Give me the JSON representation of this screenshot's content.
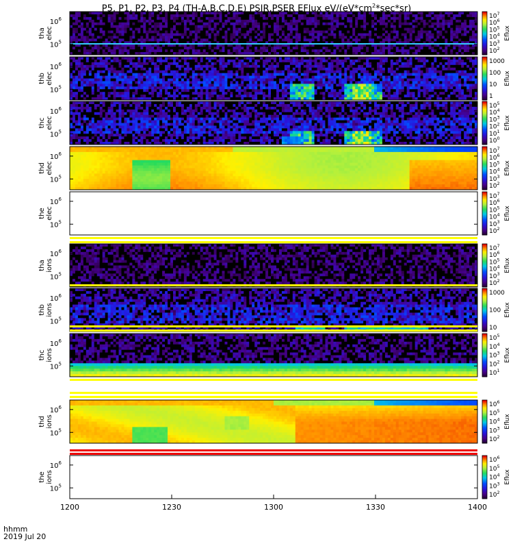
{
  "title_text": "P5, P1, P2, P3, P4 (TH-A,B,C,D,E) PSIR,PSER EFlux eV/(eV*cm",
  "title_sup": "2",
  "title_rest": "*sec*sr)",
  "x_axis": {
    "ticks": [
      "1200",
      "1230",
      "1300",
      "1330",
      "1400"
    ],
    "label_line1": "hhmm",
    "label_line2": "2019 Jul 20"
  },
  "colorbar_label": "Eflux",
  "chart_data": {
    "type": "heatmap",
    "x_range_minutes": [
      0,
      120
    ],
    "panels": [
      {
        "probe": "tha",
        "species": "elec",
        "ylabels": [
          "10",
          "10"
        ],
        "yexp": [
          "6",
          "5"
        ],
        "cbar_ticks": [
          "10^7",
          "10^6",
          "10^5",
          "10^4",
          "10^3",
          "10^2"
        ],
        "pattern": "noise",
        "line": "cyan"
      },
      {
        "probe": "thb",
        "species": "elec",
        "ylabels": [
          "10",
          "10"
        ],
        "yexp": [
          "6",
          "5"
        ],
        "cbar_ticks": [
          "1000",
          "100",
          "10",
          "1"
        ],
        "pattern": "bursts_low"
      },
      {
        "probe": "thc",
        "species": "elec",
        "ylabels": [
          "10",
          "10"
        ],
        "yexp": [
          "6",
          "5"
        ],
        "cbar_ticks": [
          "10^5",
          "10^4",
          "10^3",
          "10^2",
          "10^1",
          "10^0"
        ],
        "pattern": "bursts_low2"
      },
      {
        "probe": "thd",
        "species": "elec",
        "ylabels": [
          "10",
          "10"
        ],
        "yexp": [
          "6",
          "5"
        ],
        "cbar_ticks": [
          "10^7",
          "10^6",
          "10^5",
          "10^4",
          "10^3",
          "10^2"
        ],
        "pattern": "dense_elec"
      },
      {
        "probe": "the",
        "species": "elec",
        "ylabels": [
          "10",
          "10"
        ],
        "yexp": [
          "6",
          "5"
        ],
        "cbar_ticks": [
          "10^7",
          "10^6",
          "10^5",
          "10^4",
          "10^3",
          "10^2"
        ],
        "pattern": "empty"
      },
      {
        "probe": "tha",
        "species": "ions",
        "ylabels": [
          "10",
          "10"
        ],
        "yexp": [
          "6",
          "5"
        ],
        "cbar_ticks": [
          "10^7",
          "10^6",
          "10^5",
          "10^4",
          "10^3",
          "10^2"
        ],
        "pattern": "noise"
      },
      {
        "probe": "thb",
        "species": "ions",
        "ylabels": [
          "10",
          "10"
        ],
        "yexp": [
          "6",
          "5"
        ],
        "cbar_ticks": [
          "1000",
          "100",
          "10"
        ],
        "pattern": "bursts_ions"
      },
      {
        "probe": "thc",
        "species": "ions",
        "ylabels": [
          "10",
          "10"
        ],
        "yexp": [
          "6",
          "5"
        ],
        "cbar_ticks": [
          "10^5",
          "10^4",
          "10^3",
          "10^2",
          "10^1"
        ],
        "pattern": "band_ions"
      },
      {
        "probe": "thd",
        "species": "ions",
        "ylabels": [
          "10",
          "10"
        ],
        "yexp": [
          "6",
          "5"
        ],
        "cbar_ticks": [
          "10^6",
          "10^5",
          "10^4",
          "10^3",
          "10^2"
        ],
        "pattern": "dense_ions"
      },
      {
        "probe": "the",
        "species": "ions",
        "ylabels": [
          "10",
          "10"
        ],
        "yexp": [
          "6",
          "5"
        ],
        "cbar_ticks": [
          "10^6",
          "10^5",
          "10^4",
          "10^3",
          "10^2"
        ],
        "pattern": "empty"
      }
    ]
  }
}
